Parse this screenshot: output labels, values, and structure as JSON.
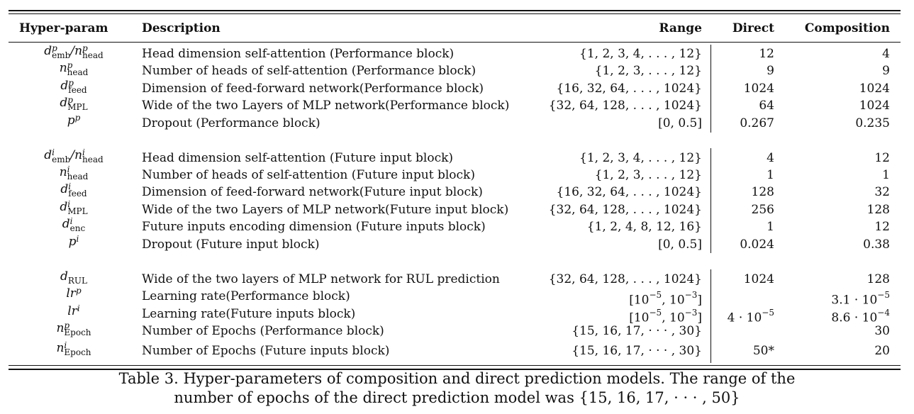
{
  "headers": {
    "hyperparam": "Hyper-param",
    "description": "Description",
    "range": "Range",
    "direct": "Direct",
    "composition": "Composition"
  },
  "rows": [
    {
      "desc": "Head dimension self-attention (Performance block)",
      "range": "{1, 2, 3, 4, . . . , 12}",
      "direct": "12",
      "comp": "4"
    },
    {
      "desc": "Number of heads of self-attention (Performance block)",
      "range": "{1, 2, 3, . . . , 12}",
      "direct": "9",
      "comp": "9"
    },
    {
      "desc": "Dimension of feed-forward network(Performance block)",
      "range": "{16, 32, 64, . . . , 1024}",
      "direct": "1024",
      "comp": "1024"
    },
    {
      "desc": "Wide of the two Layers of MLP network(Performance block)",
      "range": "{32, 64, 128, . . . , 1024}",
      "direct": "64",
      "comp": "1024"
    },
    {
      "desc": "Dropout (Performance block)",
      "range": "[0, 0.5]",
      "direct": "0.267",
      "comp": "0.235"
    },
    {
      "desc": "Head dimension self-attention (Future input block)",
      "range": "{1, 2, 3, 4, . . . , 12}",
      "direct": "4",
      "comp": "12"
    },
    {
      "desc": "Number of heads of self-attention (Future input block)",
      "range": "{1, 2, 3, . . . , 12}",
      "direct": "1",
      "comp": "1"
    },
    {
      "desc": "Dimension of feed-forward network(Future input block)",
      "range": "{16, 32, 64, . . . , 1024}",
      "direct": "128",
      "comp": "32"
    },
    {
      "desc": "Wide of the two Layers of MLP network(Future input block)",
      "range": "{32, 64, 128, . . . , 1024}",
      "direct": "256",
      "comp": "128"
    },
    {
      "desc": "Future inputs encoding dimension (Future inputs block)",
      "range": "{1, 2, 4, 8, 12, 16}",
      "direct": "1",
      "comp": "12"
    },
    {
      "desc": "Dropout (Future input block)",
      "range": "[0, 0.5]",
      "direct": "0.024",
      "comp": "0.38"
    },
    {
      "desc": "Wide of the two layers of MLP network for RUL prediction",
      "range": "{32, 64, 128, . . . , 1024}",
      "direct": "1024",
      "comp": "128"
    },
    {
      "desc": "Learning rate(Performance block)",
      "range": "",
      "direct": "",
      "comp": ""
    },
    {
      "desc": "Learning rate(Future inputs block)",
      "range": "",
      "direct": "",
      "comp": ""
    },
    {
      "desc": "Number of Epochs (Performance block)",
      "range": "{15, 16, 17, · · · , 30}",
      "direct": "",
      "comp": "30"
    },
    {
      "desc": "Number of Epochs (Future inputs block)",
      "range": "{15, 16, 17, · · · , 30}",
      "direct": "50*",
      "comp": "20"
    }
  ],
  "exp": {
    "lr_range_base": "[10",
    "lr_range_e1": "−5",
    "lr_range_mid": ", 10",
    "lr_range_e2": "−3",
    "lr_range_end": "]",
    "lrp_comp_base": "3.1 · 10",
    "lrp_comp_exp": "−5",
    "lri_direct_base": "4 · 10",
    "lri_direct_exp": "−5",
    "lri_comp_base": "8.6 · 10",
    "lri_comp_exp": "−4"
  },
  "symbols": {
    "emb": "emb",
    "head": "head",
    "feed": "feed",
    "mpl": "MPL",
    "enc": "enc",
    "rul": "RUL",
    "epoch": "Epoch",
    "p": "p",
    "i": "i",
    "d": "d",
    "n": "n",
    "lr": "lr",
    "slash": "/"
  },
  "caption": {
    "line1": "Table 3. Hyper-parameters of composition and direct prediction models. The range of the",
    "line2": "number of epochs of the direct prediction model was {15, 16, 17, · · · , 50}"
  }
}
